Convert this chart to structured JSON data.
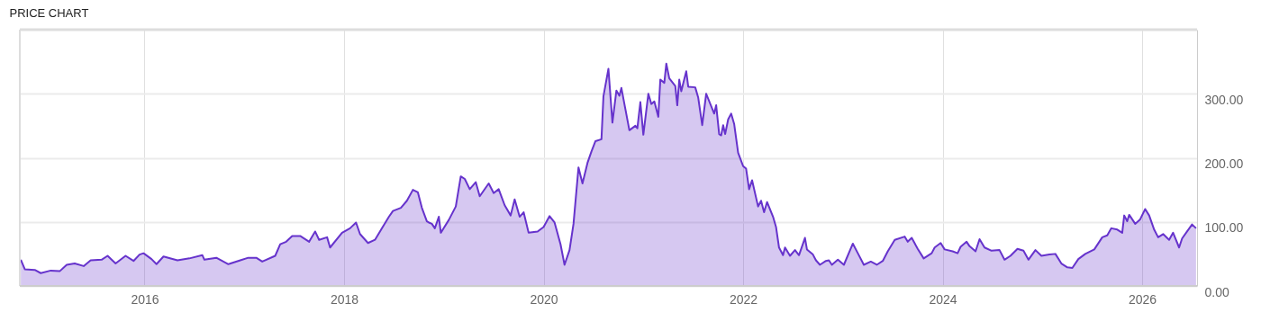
{
  "chart_data": {
    "type": "area",
    "title": "PRICE CHART",
    "x": [
      2014.76,
      2014.8,
      2014.9,
      2014.96,
      2015.06,
      2015.15,
      2015.22,
      2015.3,
      2015.39,
      2015.46,
      2015.57,
      2015.63,
      2015.71,
      2015.81,
      2015.89,
      2015.95,
      2015.99,
      2016.07,
      2016.12,
      2016.19,
      2016.33,
      2016.45,
      2016.58,
      2016.6,
      2016.72,
      2016.84,
      2016.96,
      2017.04,
      2017.12,
      2017.18,
      2017.31,
      2017.36,
      2017.42,
      2017.48,
      2017.56,
      2017.65,
      2017.71,
      2017.75,
      2017.83,
      2017.86,
      2017.98,
      2018.06,
      2018.12,
      2018.16,
      2018.24,
      2018.31,
      2018.36,
      2018.45,
      2018.49,
      2018.57,
      2018.63,
      2018.69,
      2018.74,
      2018.78,
      2018.83,
      2018.85,
      2018.88,
      2018.91,
      2018.95,
      2018.97,
      2019.05,
      2019.12,
      2019.17,
      2019.21,
      2019.26,
      2019.32,
      2019.36,
      2019.45,
      2019.5,
      2019.55,
      2019.61,
      2019.67,
      2019.71,
      2019.76,
      2019.8,
      2019.85,
      2019.94,
      2020.0,
      2020.06,
      2020.11,
      2020.17,
      2020.21,
      2020.26,
      2020.3,
      2020.35,
      2020.39,
      2020.44,
      2020.48,
      2020.52,
      2020.58,
      2020.6,
      2020.65,
      2020.69,
      2020.73,
      2020.76,
      2020.78,
      2020.82,
      2020.86,
      2020.92,
      2020.94,
      2020.97,
      2021.0,
      2021.05,
      2021.08,
      2021.11,
      2021.15,
      2021.17,
      2021.21,
      2021.23,
      2021.26,
      2021.32,
      2021.34,
      2021.36,
      2021.38,
      2021.43,
      2021.45,
      2021.52,
      2021.55,
      2021.59,
      2021.63,
      2021.71,
      2021.73,
      2021.76,
      2021.78,
      2021.8,
      2021.82,
      2021.85,
      2021.88,
      2021.91,
      2021.95,
      2022.0,
      2022.03,
      2022.06,
      2022.09,
      2022.15,
      2022.18,
      2022.21,
      2022.24,
      2022.3,
      2022.33,
      2022.36,
      2022.4,
      2022.42,
      2022.47,
      2022.52,
      2022.56,
      2022.62,
      2022.64,
      2022.7,
      2022.73,
      2022.77,
      2022.83,
      2022.86,
      2022.89,
      2022.95,
      2023.01,
      2023.1,
      2023.15,
      2023.21,
      2023.28,
      2023.34,
      2023.4,
      2023.45,
      2023.52,
      2023.62,
      2023.65,
      2023.69,
      2023.75,
      2023.81,
      2023.89,
      2023.92,
      2023.98,
      2024.02,
      2024.1,
      2024.15,
      2024.18,
      2024.24,
      2024.27,
      2024.33,
      2024.37,
      2024.42,
      2024.49,
      2024.57,
      2024.62,
      2024.68,
      2024.75,
      2024.81,
      2024.86,
      2024.93,
      2024.99,
      2025.07,
      2025.13,
      2025.19,
      2025.25,
      2025.3,
      2025.36,
      2025.43,
      2025.52,
      2025.6,
      2025.65,
      2025.69,
      2025.75,
      2025.8,
      2025.82,
      2025.85,
      2025.87,
      2025.93,
      2025.98,
      2026.03,
      2026.07,
      2026.12,
      2026.16,
      2026.21,
      2026.27,
      2026.31,
      2026.37,
      2026.4,
      2026.45,
      2026.5,
      2026.54
    ],
    "series": [
      {
        "color": "#6633cc",
        "values": [
          41,
          26,
          25,
          20,
          24,
          23,
          33,
          35,
          31,
          40,
          41,
          47,
          35,
          47,
          39,
          49,
          51,
          42,
          34,
          46,
          40,
          43,
          48,
          41,
          44,
          34,
          40,
          44,
          44,
          38,
          47,
          65,
          69,
          78,
          78,
          69,
          85,
          72,
          76,
          60,
          83,
          90,
          99,
          81,
          67,
          72,
          85,
          108,
          117,
          122,
          133,
          150,
          146,
          122,
          101,
          99,
          97,
          90,
          108,
          83,
          103,
          124,
          171,
          167,
          151,
          162,
          140,
          160,
          145,
          151,
          126,
          110,
          135,
          108,
          115,
          83,
          85,
          92,
          109,
          99,
          65,
          33,
          56,
          97,
          185,
          160,
          192,
          210,
          226,
          229,
          296,
          339,
          255,
          305,
          297,
          309,
          276,
          243,
          250,
          246,
          287,
          236,
          300,
          284,
          288,
          264,
          322,
          317,
          347,
          324,
          312,
          282,
          322,
          304,
          335,
          311,
          310,
          294,
          251,
          300,
          269,
          282,
          237,
          235,
          251,
          237,
          260,
          269,
          253,
          208,
          187,
          183,
          151,
          165,
          124,
          133,
          115,
          131,
          108,
          92,
          60,
          48,
          60,
          47,
          56,
          48,
          75,
          57,
          49,
          40,
          33,
          39,
          40,
          33,
          41,
          33,
          66,
          51,
          33,
          38,
          33,
          39,
          54,
          72,
          77,
          69,
          75,
          58,
          43,
          51,
          60,
          67,
          57,
          54,
          51,
          61,
          69,
          62,
          54,
          73,
          60,
          55,
          56,
          41,
          47,
          58,
          55,
          41,
          56,
          47,
          49,
          50,
          35,
          29,
          28,
          42,
          50,
          57,
          76,
          79,
          90,
          88,
          83,
          110,
          101,
          111,
          97,
          104,
          120,
          110,
          88,
          76,
          81,
          72,
          83,
          60,
          74,
          85,
          96,
          90
        ]
      }
    ],
    "xlim": [
      2014.75,
      2026.55
    ],
    "xticks": [
      2016,
      2018,
      2020,
      2022,
      2024,
      2026
    ],
    "ylim": [
      0,
      400
    ],
    "yticks": [
      {
        "value": 0,
        "label": "0.00"
      },
      {
        "value": 100,
        "label": "100.00"
      },
      {
        "value": 200,
        "label": "200.00"
      },
      {
        "value": 300,
        "label": "300.00"
      }
    ],
    "grid": true
  }
}
